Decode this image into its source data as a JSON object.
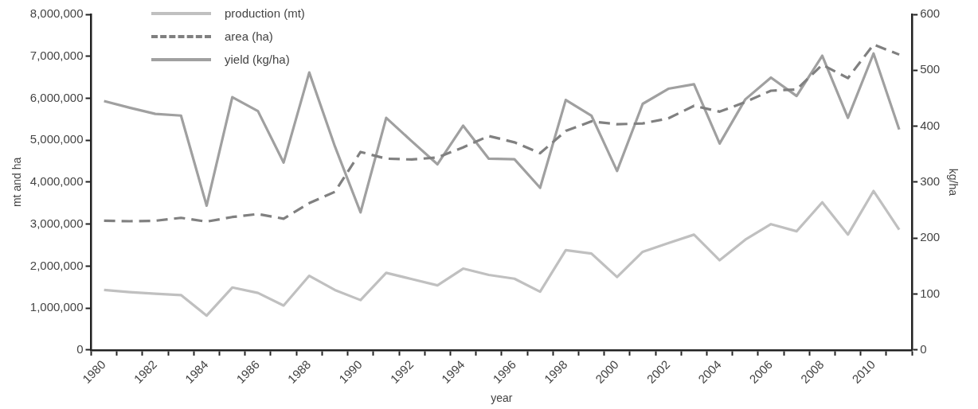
{
  "chart_data": {
    "type": "line",
    "xlabel": "year",
    "ylabel": "mt and ha",
    "y2label": "kg/ha",
    "categories": [
      "1980",
      null,
      "1982",
      null,
      "1984",
      null,
      "1986",
      null,
      "1988",
      null,
      "1990",
      null,
      "1992",
      null,
      "1994",
      null,
      "1996",
      null,
      "1998",
      null,
      "2000",
      null,
      "2002",
      null,
      "2004",
      null,
      "2006",
      null,
      "2008",
      null,
      "2010",
      null
    ],
    "series": [
      {
        "name": "production (mt)",
        "color": "#c0c0c0",
        "line_style": "solid",
        "values": [
          1430000,
          1380000,
          1340000,
          1310000,
          820000,
          1490000,
          1360000,
          1060000,
          1770000,
          1430000,
          1190000,
          1840000,
          1690000,
          1540000,
          1940000,
          1790000,
          1700000,
          1390000,
          2380000,
          2300000,
          1740000,
          2340000,
          2550000,
          2750000,
          2140000,
          2630000,
          3000000,
          2830000,
          3520000,
          2750000,
          3790000,
          2870000
        ]
      },
      {
        "name": "area (ha)",
        "color": "#808080",
        "line_style": "dashed",
        "values": [
          3080000,
          3070000,
          3080000,
          3150000,
          3060000,
          3170000,
          3240000,
          3130000,
          3500000,
          3770000,
          4720000,
          4560000,
          4540000,
          4590000,
          4830000,
          5100000,
          4950000,
          4690000,
          5220000,
          5450000,
          5380000,
          5400000,
          5520000,
          5820000,
          5680000,
          5910000,
          6180000,
          6210000,
          6800000,
          6480000,
          7280000,
          7040000
        ]
      },
      {
        "name": "yield (kg/ha)",
        "color": "#a0a0a0",
        "line_style": "solid",
        "axis": "y2",
        "values": [
          445,
          433,
          422,
          419,
          258,
          452,
          427,
          335,
          496,
          364,
          246,
          415,
          373,
          332,
          401,
          342,
          341,
          290,
          447,
          419,
          320,
          440,
          467,
          475,
          369,
          448,
          487,
          454,
          526,
          415,
          530,
          394
        ]
      }
    ],
    "ylim": [
      0,
      8000000
    ],
    "yticks": [
      0,
      {
        "value": 1000000,
        "label": "1,000,000"
      },
      {
        "value": 2000000,
        "label": "2,000,000"
      },
      {
        "value": 3000000,
        "label": "3,000,000"
      },
      {
        "value": 4000000,
        "label": "4,000,000"
      },
      {
        "value": 5000000,
        "label": "5,000,000"
      },
      {
        "value": 6000000,
        "label": "6,000,000"
      },
      {
        "value": 7000000,
        "label": "7,000,000"
      },
      {
        "value": 8000000,
        "label": "8,000,000"
      }
    ],
    "y2lim": [
      0,
      600
    ],
    "y2ticks": [
      0,
      100,
      200,
      300,
      400,
      500,
      600
    ],
    "grid": false,
    "legend": "top left"
  }
}
